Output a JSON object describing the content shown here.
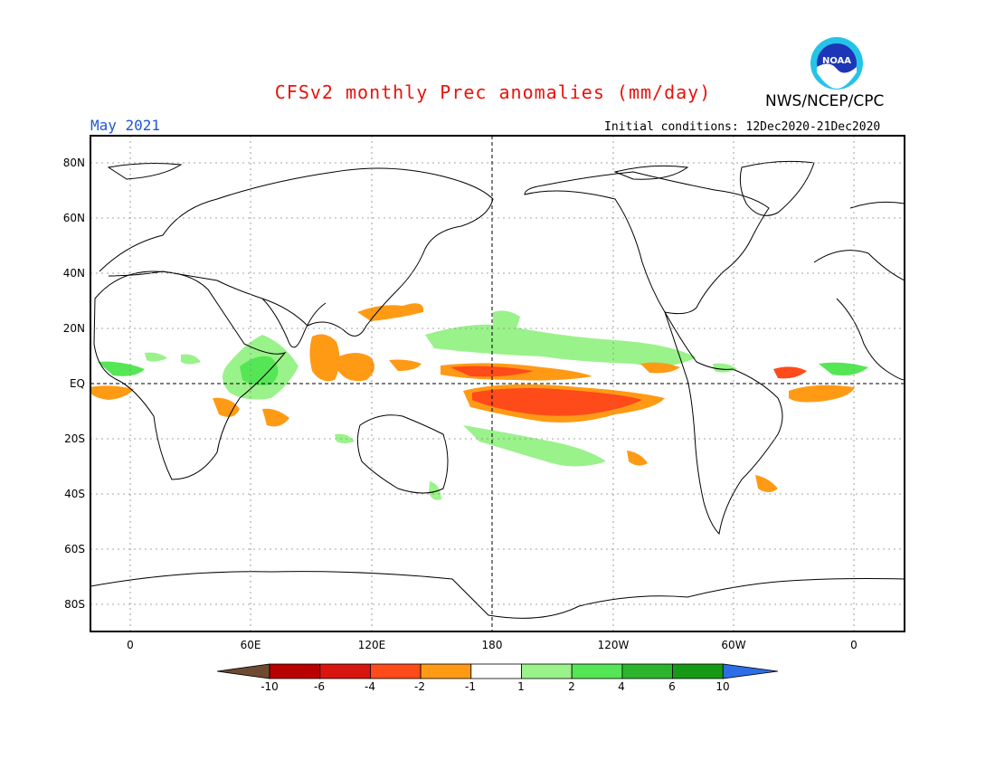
{
  "header": {
    "title": "CFSv2 monthly Prec anomalies (mm/day)",
    "org": "NWS/NCEP/CPC",
    "logo_text": "NOAA",
    "month": "May 2021",
    "initial_conditions": "Initial conditions: 12Dec2020-21Dec2020"
  },
  "axes": {
    "lat_labels": [
      "80N",
      "60N",
      "40N",
      "20N",
      "EQ",
      "20S",
      "40S",
      "60S",
      "80S"
    ],
    "lon_labels": [
      "0",
      "60E",
      "120E",
      "180",
      "120W",
      "60W",
      "0"
    ]
  },
  "colorbar": {
    "labels": [
      "-10",
      "-6",
      "-4",
      "-2",
      "-1",
      "1",
      "2",
      "4",
      "6",
      "10"
    ],
    "colors": [
      "#6e4a33",
      "#b80000",
      "#d8150f",
      "#ff4a1a",
      "#ff9a15",
      "#ffffff",
      "#9af28a",
      "#55e655",
      "#2cb52c",
      "#169a16",
      "#2d6ee8"
    ]
  }
}
